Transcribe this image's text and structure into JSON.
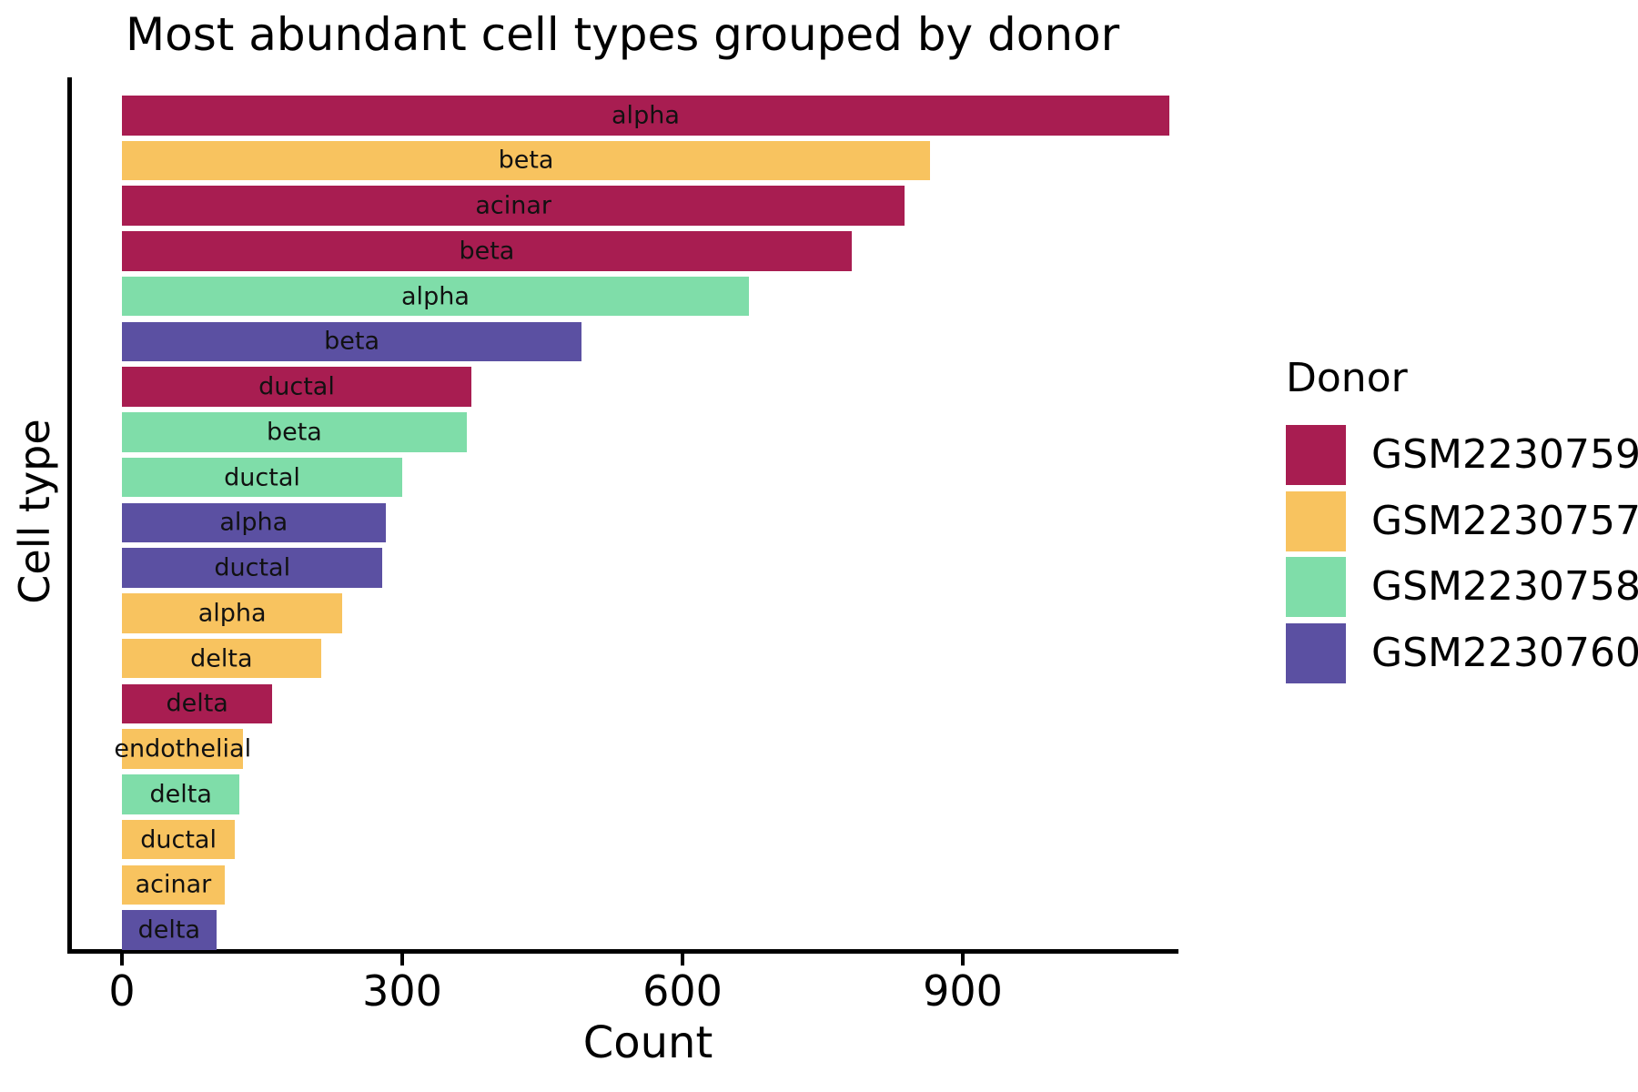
{
  "chart_data": {
    "type": "bar",
    "orientation": "horizontal",
    "title": "Most abundant cell types grouped by donor",
    "xlabel": "Count",
    "ylabel": "Cell type",
    "xticks": [
      0,
      300,
      600,
      900
    ],
    "xlim": [
      0,
      1130
    ],
    "grid": false,
    "legend": {
      "title": "Donor",
      "position": "right",
      "entries": [
        {
          "label": "GSM2230759",
          "color": "#A81D51"
        },
        {
          "label": "GSM2230757",
          "color": "#F8C35F"
        },
        {
          "label": "GSM2230758",
          "color": "#7FDDA9"
        },
        {
          "label": "GSM2230760",
          "color": "#5B50A2"
        }
      ]
    },
    "bars": [
      {
        "cell_type": "alpha",
        "donor": "GSM2230759",
        "count": 1121
      },
      {
        "cell_type": "beta",
        "donor": "GSM2230757",
        "count": 865
      },
      {
        "cell_type": "acinar",
        "donor": "GSM2230759",
        "count": 838
      },
      {
        "cell_type": "beta",
        "donor": "GSM2230759",
        "count": 781
      },
      {
        "cell_type": "alpha",
        "donor": "GSM2230758",
        "count": 671
      },
      {
        "cell_type": "beta",
        "donor": "GSM2230760",
        "count": 492
      },
      {
        "cell_type": "ductal",
        "donor": "GSM2230759",
        "count": 374
      },
      {
        "cell_type": "beta",
        "donor": "GSM2230758",
        "count": 369
      },
      {
        "cell_type": "ductal",
        "donor": "GSM2230758",
        "count": 300
      },
      {
        "cell_type": "alpha",
        "donor": "GSM2230760",
        "count": 282
      },
      {
        "cell_type": "ductal",
        "donor": "GSM2230760",
        "count": 279
      },
      {
        "cell_type": "alpha",
        "donor": "GSM2230757",
        "count": 236
      },
      {
        "cell_type": "delta",
        "donor": "GSM2230757",
        "count": 213
      },
      {
        "cell_type": "delta",
        "donor": "GSM2230759",
        "count": 161
      },
      {
        "cell_type": "endothelial",
        "donor": "GSM2230757",
        "count": 130
      },
      {
        "cell_type": "delta",
        "donor": "GSM2230758",
        "count": 126
      },
      {
        "cell_type": "ductal",
        "donor": "GSM2230757",
        "count": 121
      },
      {
        "cell_type": "acinar",
        "donor": "GSM2230757",
        "count": 110
      },
      {
        "cell_type": "delta",
        "donor": "GSM2230760",
        "count": 101
      }
    ]
  }
}
